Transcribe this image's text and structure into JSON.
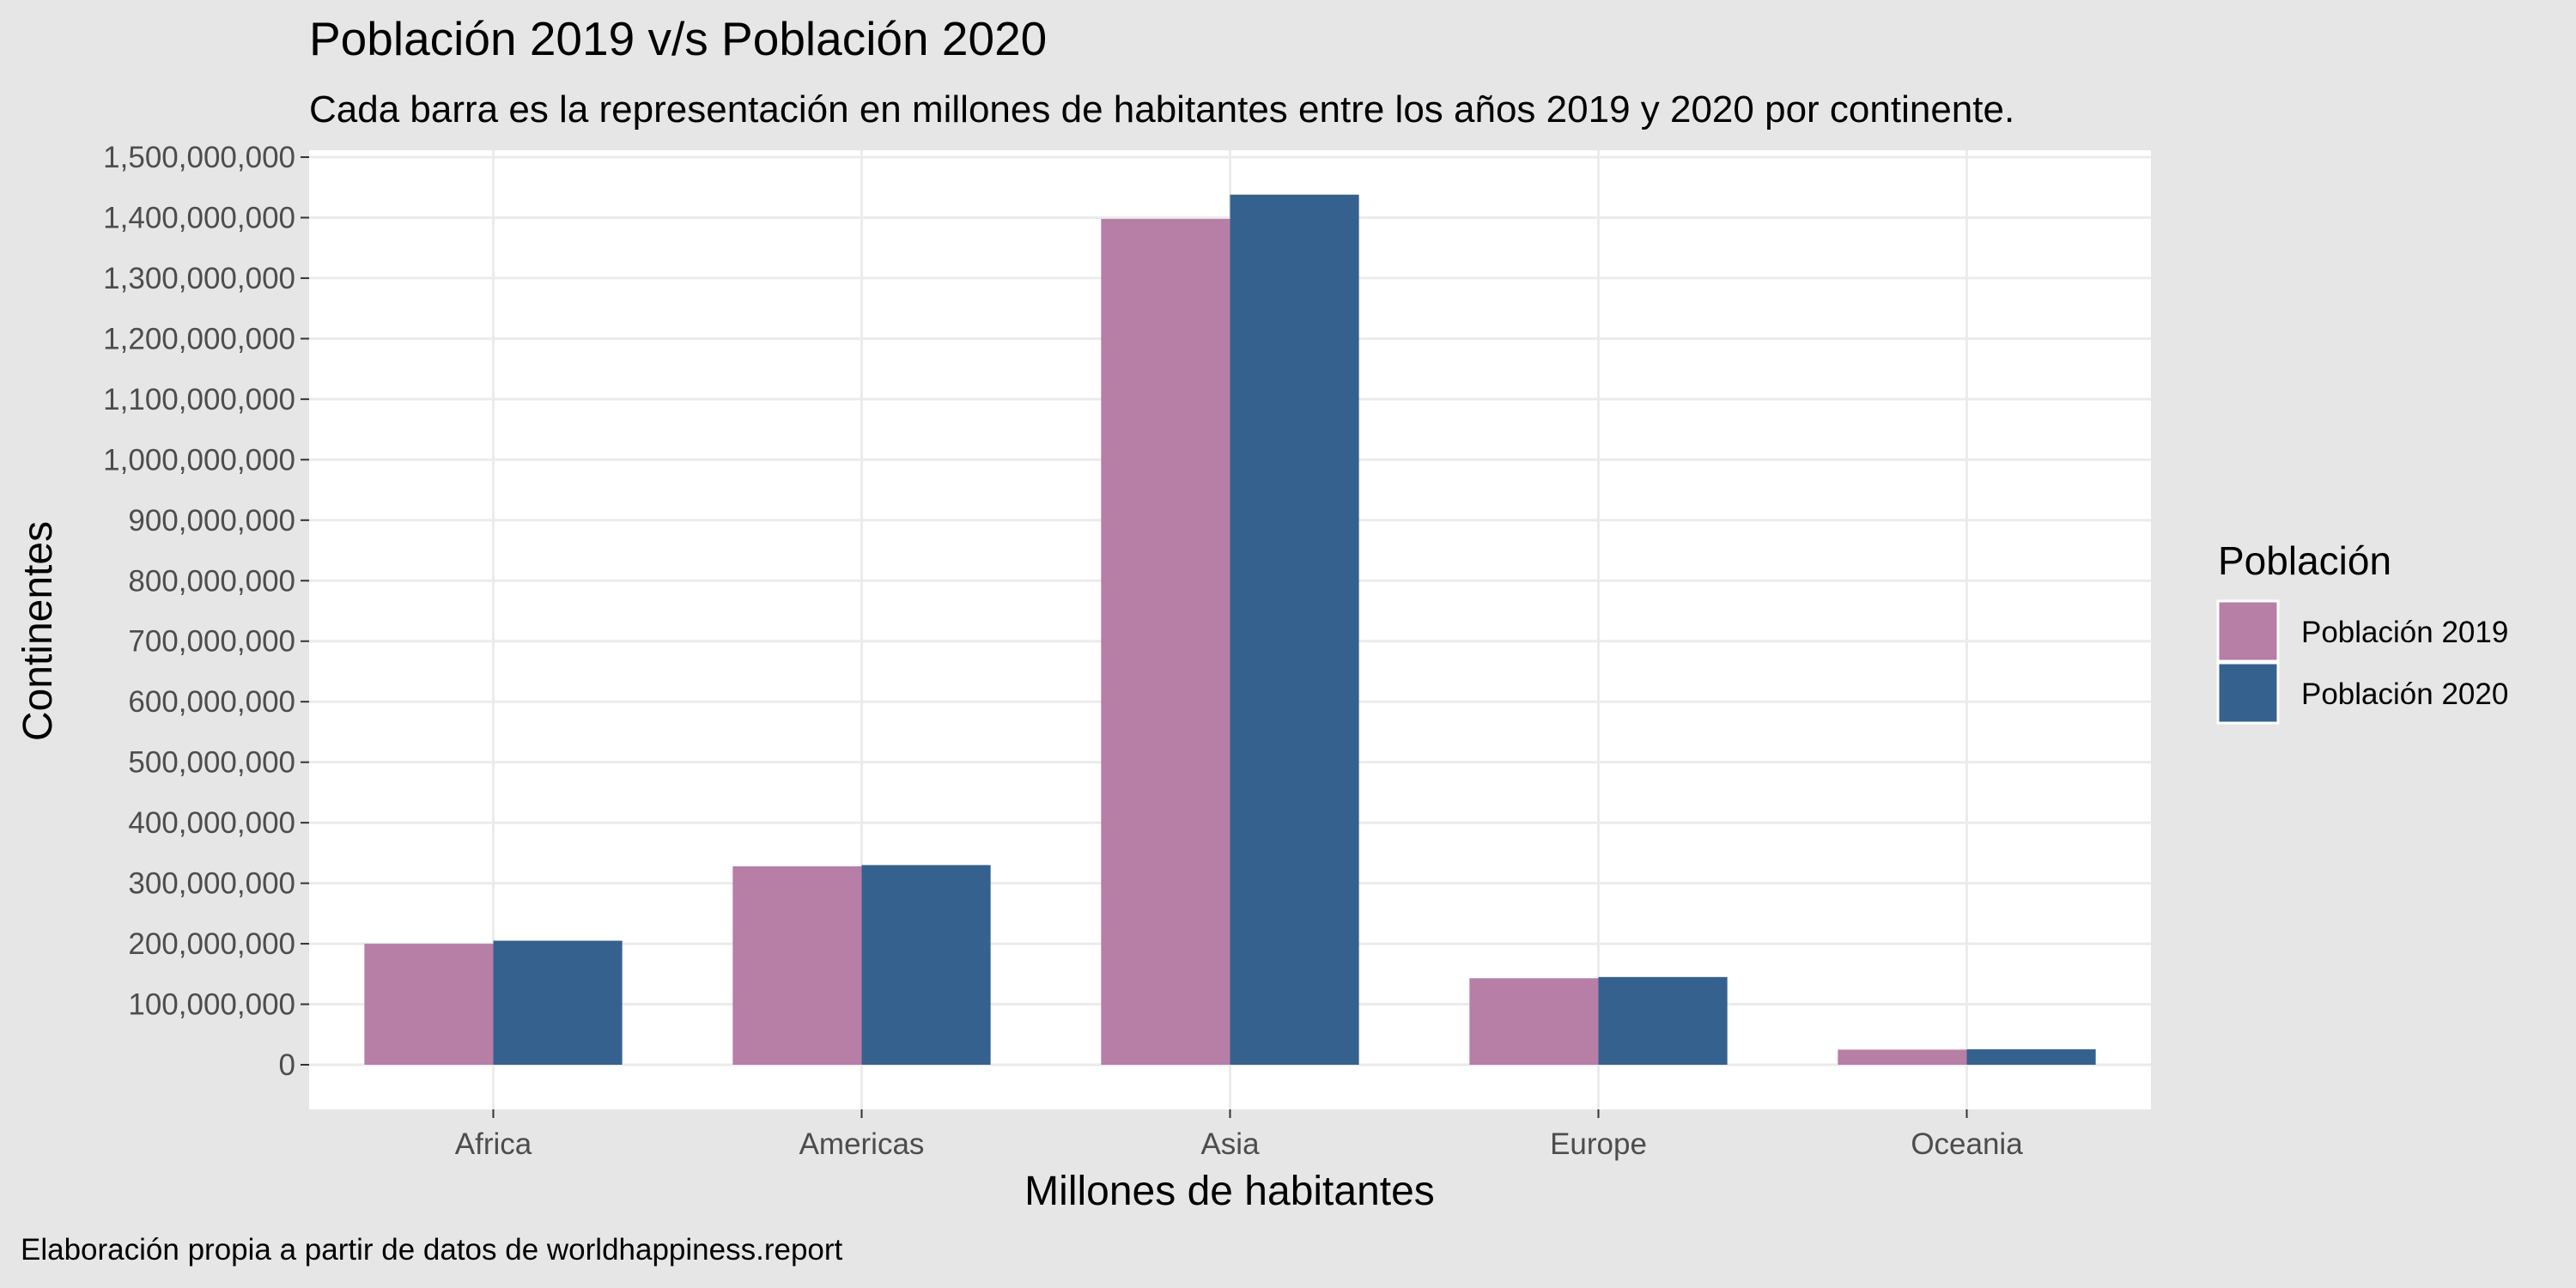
{
  "chart_data": {
    "type": "bar",
    "title": "Población 2019 v/s Población 2020",
    "subtitle": "Cada barra es la representación en millones de habitantes entre los años 2019 y 2020 por continente.",
    "xlabel": "Millones de habitantes",
    "ylabel": "Continentes",
    "caption": "Elaboración propia a partir de datos de worldhappiness.report",
    "categories": [
      "Africa",
      "Americas",
      "Asia",
      "Europe",
      "Oceania"
    ],
    "series": [
      {
        "name": "Población 2019",
        "color": "#b77ea6",
        "values": [
          200000000,
          328000000,
          1398000000,
          143000000,
          25000000
        ]
      },
      {
        "name": "Población 2020",
        "color": "#35618f",
        "values": [
          205000000,
          330000000,
          1438000000,
          145000000,
          25500000
        ]
      }
    ],
    "ylim": [
      0,
      1500000000
    ],
    "yticks": [
      0,
      100000000,
      200000000,
      300000000,
      400000000,
      500000000,
      600000000,
      700000000,
      800000000,
      900000000,
      1000000000,
      1100000000,
      1200000000,
      1300000000,
      1400000000,
      1500000000
    ],
    "ytick_labels": [
      "0",
      "100,000,000",
      "200,000,000",
      "300,000,000",
      "400,000,000",
      "500,000,000",
      "600,000,000",
      "700,000,000",
      "800,000,000",
      "900,000,000",
      "1,000,000,000",
      "1,100,000,000",
      "1,200,000,000",
      "1,300,000,000",
      "1,400,000,000",
      "1,500,000,000"
    ],
    "grid": true,
    "legend": {
      "title": "Población",
      "position": "right"
    }
  }
}
